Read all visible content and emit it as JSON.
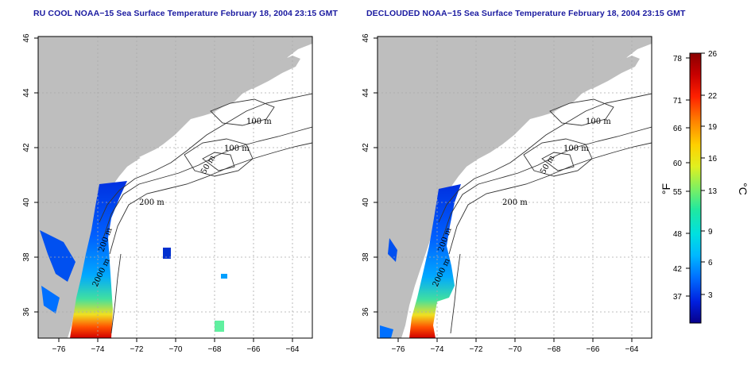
{
  "maps": [
    {
      "title": "RU COOL NOAA−15 Sea Surface Temperature February 18, 2004 23:15 GMT",
      "x_ticks": [
        "−76",
        "−74",
        "−72",
        "−70",
        "−68",
        "−66",
        "−64"
      ],
      "y_ticks": [
        "36",
        "38",
        "40",
        "42",
        "44",
        "46"
      ],
      "contour_labels": [
        "100 m",
        "100 m",
        "50 m",
        "200 m",
        "200 m",
        "2000 m"
      ]
    },
    {
      "title": "DECLOUDED NOAA−15 Sea Surface Temperature February 18, 2004 23:15 GMT",
      "x_ticks": [
        "−76",
        "−74",
        "−72",
        "−70",
        "−68",
        "−66",
        "−64"
      ],
      "y_ticks": [
        "36",
        "38",
        "40",
        "42",
        "44",
        "46"
      ],
      "contour_labels": [
        "100 m",
        "100 m",
        "50 m",
        "200 m",
        "200 m",
        "2000 m"
      ]
    }
  ],
  "colorbar": {
    "fahrenheit_ticks": [
      "78",
      "71",
      "66",
      "60",
      "55",
      "48",
      "42",
      "37"
    ],
    "celsius_ticks": [
      "26",
      "22",
      "19",
      "16",
      "13",
      "9",
      "6",
      "3"
    ],
    "fahrenheit_unit": "°F",
    "celsius_unit": "°C",
    "colors": [
      "#08008a",
      "#0020e0",
      "#0070ff",
      "#00b8ff",
      "#00e0e0",
      "#20e8a0",
      "#80f060",
      "#e0f020",
      "#ffd000",
      "#ff8000",
      "#ff2000",
      "#c80000",
      "#8a0000"
    ]
  }
}
